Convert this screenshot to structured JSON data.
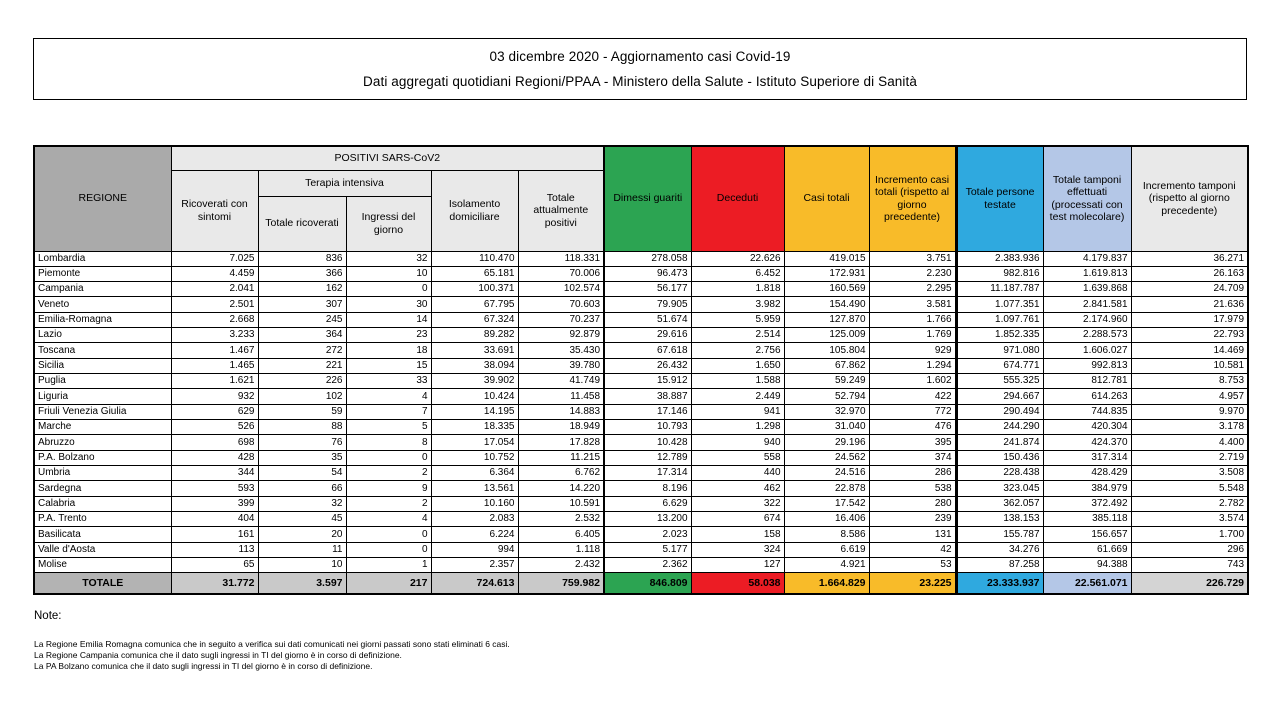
{
  "title": {
    "line1": "03 dicembre 2020 - Aggiornamento casi Covid-19",
    "line2": "Dati aggregati quotidiani Regioni/PPAA - Ministero della Salute - Istituto Superiore di Sanità"
  },
  "table": {
    "header": {
      "regione": "REGIONE",
      "positivi_group": "POSITIVI SARS-CoV2",
      "terapia_group": "Terapia intensiva",
      "ricoverati": "Ricoverati con sintomi",
      "totale_ricoverati": "Totale ricoverati",
      "ingressi": "Ingressi del giorno",
      "isolamento": "Isolamento domiciliare",
      "tot_positivi": "Totale attualmente positivi",
      "dimessi": "Dimessi guariti",
      "deceduti": "Deceduti",
      "casi_totali": "Casi totali",
      "incr_casi": "Incremento casi totali (rispetto al giorno precedente)",
      "testate": "Totale persone testate",
      "tamponi": "Totale tamponi effettuati (processati con test molecolare)",
      "incr_tamponi": "Incremento tamponi (rispetto al giorno precedente)"
    },
    "rows": [
      {
        "name": "Lombardia",
        "values": [
          "7.025",
          "836",
          "32",
          "110.470",
          "118.331",
          "278.058",
          "22.626",
          "419.015",
          "3.751",
          "2.383.936",
          "4.179.837",
          "36.271"
        ]
      },
      {
        "name": "Piemonte",
        "values": [
          "4.459",
          "366",
          "10",
          "65.181",
          "70.006",
          "96.473",
          "6.452",
          "172.931",
          "2.230",
          "982.816",
          "1.619.813",
          "26.163"
        ]
      },
      {
        "name": "Campania",
        "values": [
          "2.041",
          "162",
          "0",
          "100.371",
          "102.574",
          "56.177",
          "1.818",
          "160.569",
          "2.295",
          "11.187.787",
          "1.639.868",
          "24.709"
        ]
      },
      {
        "name": "Veneto",
        "values": [
          "2.501",
          "307",
          "30",
          "67.795",
          "70.603",
          "79.905",
          "3.982",
          "154.490",
          "3.581",
          "1.077.351",
          "2.841.581",
          "21.636"
        ]
      },
      {
        "name": "Emilia-Romagna",
        "values": [
          "2.668",
          "245",
          "14",
          "67.324",
          "70.237",
          "51.674",
          "5.959",
          "127.870",
          "1.766",
          "1.097.761",
          "2.174.960",
          "17.979"
        ]
      },
      {
        "name": "Lazio",
        "values": [
          "3.233",
          "364",
          "23",
          "89.282",
          "92.879",
          "29.616",
          "2.514",
          "125.009",
          "1.769",
          "1.852.335",
          "2.288.573",
          "22.793"
        ]
      },
      {
        "name": "Toscana",
        "values": [
          "1.467",
          "272",
          "18",
          "33.691",
          "35.430",
          "67.618",
          "2.756",
          "105.804",
          "929",
          "971.080",
          "1.606.027",
          "14.469"
        ]
      },
      {
        "name": "Sicilia",
        "values": [
          "1.465",
          "221",
          "15",
          "38.094",
          "39.780",
          "26.432",
          "1.650",
          "67.862",
          "1.294",
          "674.771",
          "992.813",
          "10.581"
        ]
      },
      {
        "name": "Puglia",
        "values": [
          "1.621",
          "226",
          "33",
          "39.902",
          "41.749",
          "15.912",
          "1.588",
          "59.249",
          "1.602",
          "555.325",
          "812.781",
          "8.753"
        ]
      },
      {
        "name": "Liguria",
        "values": [
          "932",
          "102",
          "4",
          "10.424",
          "11.458",
          "38.887",
          "2.449",
          "52.794",
          "422",
          "294.667",
          "614.263",
          "4.957"
        ]
      },
      {
        "name": "Friuli Venezia Giulia",
        "values": [
          "629",
          "59",
          "7",
          "14.195",
          "14.883",
          "17.146",
          "941",
          "32.970",
          "772",
          "290.494",
          "744.835",
          "9.970"
        ]
      },
      {
        "name": "Marche",
        "values": [
          "526",
          "88",
          "5",
          "18.335",
          "18.949",
          "10.793",
          "1.298",
          "31.040",
          "476",
          "244.290",
          "420.304",
          "3.178"
        ]
      },
      {
        "name": "Abruzzo",
        "values": [
          "698",
          "76",
          "8",
          "17.054",
          "17.828",
          "10.428",
          "940",
          "29.196",
          "395",
          "241.874",
          "424.370",
          "4.400"
        ]
      },
      {
        "name": "P.A. Bolzano",
        "values": [
          "428",
          "35",
          "0",
          "10.752",
          "11.215",
          "12.789",
          "558",
          "24.562",
          "374",
          "150.436",
          "317.314",
          "2.719"
        ]
      },
      {
        "name": "Umbria",
        "values": [
          "344",
          "54",
          "2",
          "6.364",
          "6.762",
          "17.314",
          "440",
          "24.516",
          "286",
          "228.438",
          "428.429",
          "3.508"
        ]
      },
      {
        "name": "Sardegna",
        "values": [
          "593",
          "66",
          "9",
          "13.561",
          "14.220",
          "8.196",
          "462",
          "22.878",
          "538",
          "323.045",
          "384.979",
          "5.548"
        ]
      },
      {
        "name": "Calabria",
        "values": [
          "399",
          "32",
          "2",
          "10.160",
          "10.591",
          "6.629",
          "322",
          "17.542",
          "280",
          "362.057",
          "372.492",
          "2.782"
        ]
      },
      {
        "name": "P.A. Trento",
        "values": [
          "404",
          "45",
          "4",
          "2.083",
          "2.532",
          "13.200",
          "674",
          "16.406",
          "239",
          "138.153",
          "385.118",
          "3.574"
        ]
      },
      {
        "name": "Basilicata",
        "values": [
          "161",
          "20",
          "0",
          "6.224",
          "6.405",
          "2.023",
          "158",
          "8.586",
          "131",
          "155.787",
          "156.657",
          "1.700"
        ]
      },
      {
        "name": "Valle d'Aosta",
        "values": [
          "113",
          "11",
          "0",
          "994",
          "1.118",
          "5.177",
          "324",
          "6.619",
          "42",
          "34.276",
          "61.669",
          "296"
        ]
      },
      {
        "name": "Molise",
        "values": [
          "65",
          "10",
          "1",
          "2.357",
          "2.432",
          "2.362",
          "127",
          "4.921",
          "53",
          "87.258",
          "94.388",
          "743"
        ]
      }
    ],
    "total": {
      "name": "TOTALE",
      "values": [
        "31.772",
        "3.597",
        "217",
        "724.613",
        "759.982",
        "846.809",
        "58.038",
        "1.664.829",
        "23.225",
        "23.333.937",
        "22.561.071",
        "226.729"
      ]
    }
  },
  "notes": {
    "label": "Note:",
    "lines": [
      "La Regione Emilia Romagna comunica che in seguito a verifica sui dati comunicati nei giorni passati sono stati eliminati 6 casi.",
      "La Regione Campania comunica che il dato sugli ingressi in TI del giorno è in corso di definizione.",
      "La PA Bolzano comunica che il dato sugli ingressi in TI del giorno è in corso di definizione."
    ]
  },
  "colors": {
    "green": "#2CA452",
    "red": "#EC1C24",
    "amber": "#F8BB29",
    "blue": "#2FA9DF",
    "periwinkle": "#B4C7E7",
    "header_gray": "#AAAAAA",
    "header_light": "#E9E9E9",
    "total_label_gray": "#B3B3B3",
    "total_value_gray": "#C9C9C9",
    "total_last_gray": "#D4D4D4"
  }
}
